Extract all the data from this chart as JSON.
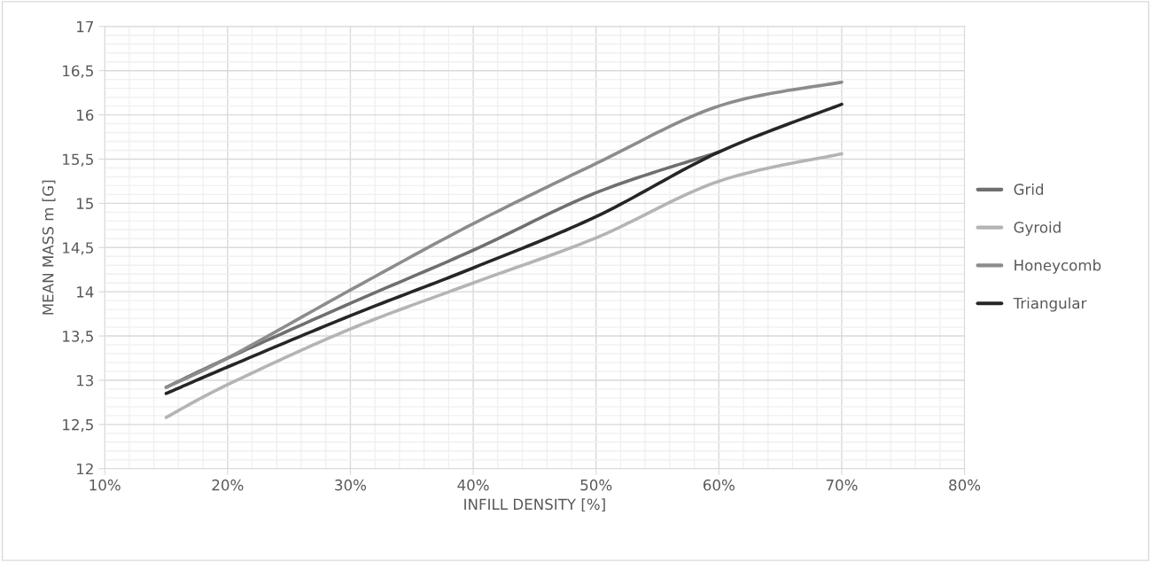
{
  "chart_data": {
    "type": "line",
    "xlabel": "INFILL DENSITY [%]",
    "ylabel": "MEAN MASS m [G]",
    "x": [
      15,
      20,
      30,
      40,
      50,
      60,
      70
    ],
    "series": [
      {
        "name": "Grid",
        "color": "#6f6f6f",
        "values": [
          12.92,
          13.25,
          13.87,
          14.47,
          15.12,
          15.58,
          null
        ]
      },
      {
        "name": "Gyroid",
        "color": "#b4b4b4",
        "values": [
          12.58,
          12.95,
          13.58,
          14.1,
          14.61,
          15.25,
          15.56
        ]
      },
      {
        "name": "Honeycomb",
        "color": "#8c8c8c",
        "values": [
          12.92,
          13.25,
          14.02,
          14.77,
          15.45,
          16.1,
          16.37
        ]
      },
      {
        "name": "Triangular",
        "color": "#262626",
        "values": [
          12.85,
          13.15,
          13.73,
          14.27,
          14.85,
          15.58,
          16.12
        ]
      }
    ],
    "xlim": [
      10,
      80
    ],
    "xticks": [
      {
        "value": 10,
        "label": "10%"
      },
      {
        "value": 20,
        "label": "20%"
      },
      {
        "value": 30,
        "label": "30%"
      },
      {
        "value": 40,
        "label": "40%"
      },
      {
        "value": 50,
        "label": "50%"
      },
      {
        "value": 60,
        "label": "60%"
      },
      {
        "value": 70,
        "label": "70%"
      },
      {
        "value": 80,
        "label": "80%"
      }
    ],
    "ylim": [
      12,
      17
    ],
    "yticks": [
      12,
      {
        "value": 12.5,
        "label": "12,5"
      },
      13,
      {
        "value": 13.5,
        "label": "13,5"
      },
      14,
      {
        "value": 14.5,
        "label": "14,5"
      },
      15,
      {
        "value": 15.5,
        "label": "15,5"
      },
      16,
      {
        "value": 16.5,
        "label": "16,5"
      },
      17
    ],
    "grid": true,
    "legend": "right",
    "marker": "none",
    "line_style": "solid"
  }
}
